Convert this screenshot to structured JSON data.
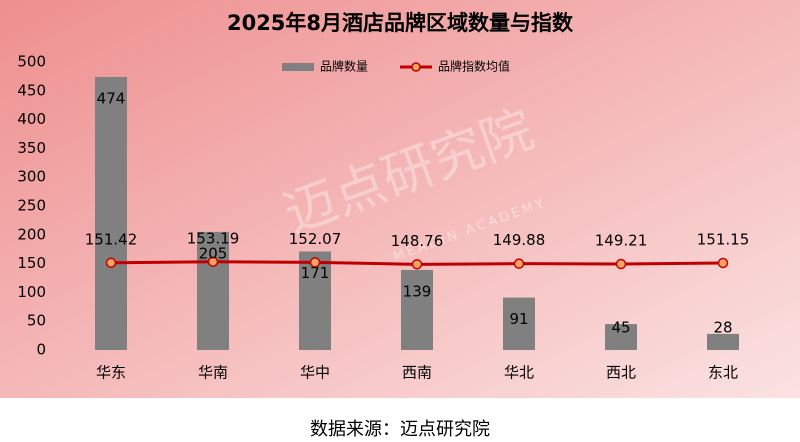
{
  "chart_data": {
    "type": "bar",
    "title": "2025年8月酒店品牌区域数量与指数",
    "categories": [
      "华东",
      "华南",
      "华中",
      "西南",
      "华北",
      "西北",
      "东北"
    ],
    "series": [
      {
        "name": "品牌数量",
        "type": "bar",
        "color": "#808080",
        "values": [
          474,
          205,
          171,
          139,
          91,
          45,
          28
        ]
      },
      {
        "name": "品牌指数均值",
        "type": "line",
        "color": "#c00000",
        "marker_color": "#f4a460",
        "values": [
          151.42,
          153.19,
          152.07,
          148.76,
          149.88,
          149.21,
          151.15
        ]
      }
    ],
    "ylim": [
      0,
      500
    ],
    "yticks": [
      0,
      50,
      100,
      150,
      200,
      250,
      300,
      350,
      400,
      450,
      500
    ],
    "grid": false,
    "legend": "top",
    "source": "数据来源：迈点研究院",
    "watermark": {
      "text": "迈点研究院",
      "subtext": "MEADIN ACADEMY"
    }
  }
}
